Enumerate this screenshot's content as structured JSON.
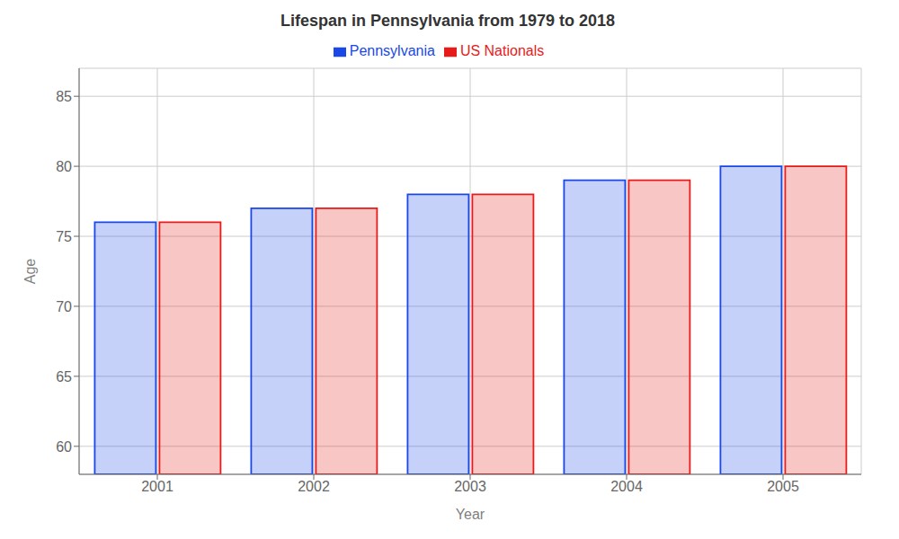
{
  "chart_data": {
    "type": "bar",
    "title": "Lifespan in Pennsylvania from 1979 to 2018",
    "xlabel": "Year",
    "ylabel": "Age",
    "categories": [
      "2001",
      "2002",
      "2003",
      "2004",
      "2005"
    ],
    "series": [
      {
        "name": "Pennsylvania",
        "color": "#1a47e8",
        "values": [
          76,
          77,
          78,
          79,
          80
        ]
      },
      {
        "name": "US Nationals",
        "color": "#e81a1a",
        "values": [
          76,
          77,
          78,
          79,
          80
        ]
      }
    ],
    "ylim": [
      58,
      87
    ],
    "yticks": [
      60,
      65,
      70,
      75,
      80,
      85
    ],
    "grid": true,
    "legend": "top"
  }
}
